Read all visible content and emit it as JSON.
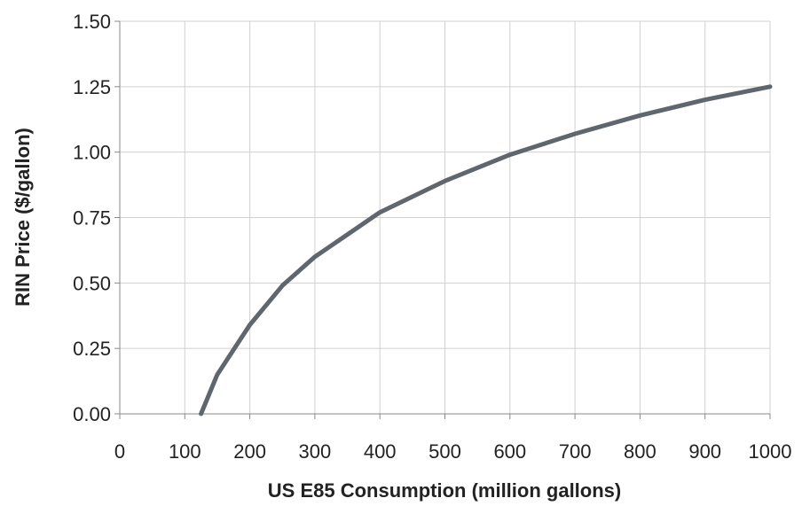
{
  "chart_data": {
    "type": "line",
    "title": "",
    "xlabel": "US E85 Consumption (million gallons)",
    "ylabel": "RIN Price ($/gallon)",
    "xlim": [
      0,
      1000
    ],
    "ylim": [
      0,
      1.5
    ],
    "x_ticks": [
      "0",
      "100",
      "200",
      "300",
      "400",
      "500",
      "600",
      "700",
      "800",
      "900",
      "1000"
    ],
    "y_ticks": [
      "0.00",
      "0.25",
      "0.50",
      "0.75",
      "1.00",
      "1.25",
      "1.50"
    ],
    "grid": true,
    "legend": "none",
    "series": [
      {
        "color": "#5f666d",
        "x": [
          125,
          150,
          200,
          250,
          300,
          400,
          500,
          600,
          700,
          800,
          900,
          1000
        ],
        "y": [
          0.0,
          0.15,
          0.34,
          0.49,
          0.6,
          0.77,
          0.89,
          0.99,
          1.07,
          1.14,
          1.2,
          1.25
        ]
      }
    ]
  }
}
